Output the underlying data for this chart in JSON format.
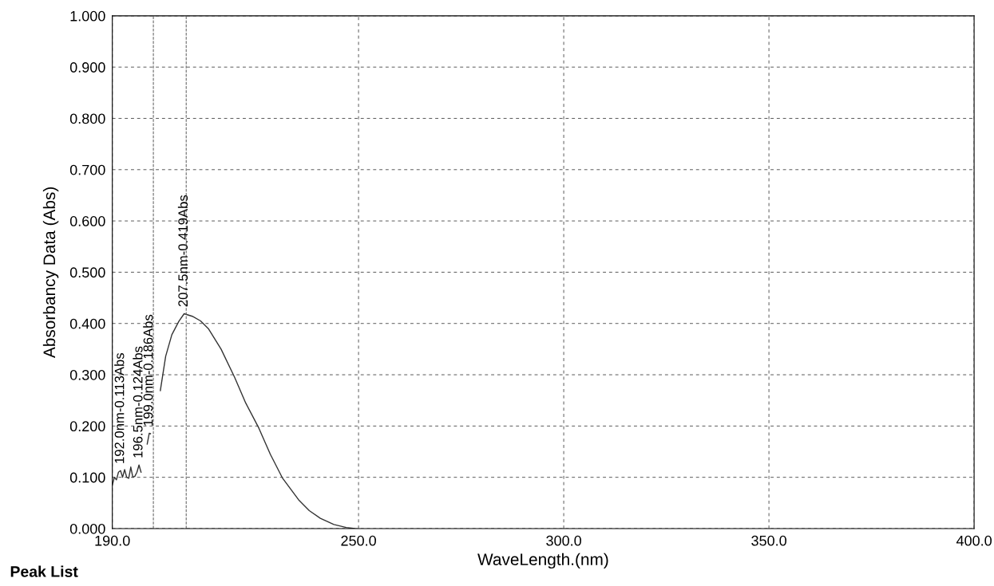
{
  "chart_data": {
    "type": "line",
    "xlabel": "WaveLength.(nm)",
    "ylabel": "Absorbancy Data (Abs)",
    "x": [
      190.0,
      190.5,
      191.0,
      191.5,
      192.0,
      192.5,
      193.0,
      193.5,
      194.0,
      194.5,
      195.0,
      195.5,
      196.0,
      196.5,
      197.0,
      197.5,
      198.5,
      199.0,
      199.3,
      200.0,
      201.7,
      203.0,
      204.5,
      206.2,
      207.5,
      209.5,
      211.5,
      213.4,
      216.5,
      219.8,
      222.5,
      225.7,
      228.5,
      231.5,
      235.4,
      238.0,
      240.7,
      244.0,
      247.0,
      249.0
    ],
    "series": [
      {
        "color": "#333333",
        "values": [
          0.085,
          0.1,
          0.095,
          0.11,
          0.113,
          0.1,
          0.115,
          0.1,
          0.098,
          0.12,
          0.1,
          0.102,
          0.11,
          0.124,
          0.11,
          null,
          0.165,
          0.186,
          0.185,
          null,
          0.269,
          0.336,
          0.378,
          0.404,
          0.419,
          0.414,
          0.405,
          0.39,
          0.35,
          0.295,
          0.245,
          0.196,
          0.145,
          0.098,
          0.056,
          0.035,
          0.02,
          0.008,
          0.002,
          0.0
        ]
      }
    ],
    "xlim": [
      190.0,
      400.0
    ],
    "xticks": [
      {
        "value": 190,
        "label": "190.0"
      },
      {
        "value": 250,
        "label": "250.0"
      },
      {
        "value": 300,
        "label": "300.0"
      },
      {
        "value": 350,
        "label": "350.0"
      },
      {
        "value": 400,
        "label": "400.0"
      }
    ],
    "ylim": [
      0.0,
      1.0
    ],
    "yticks": [
      {
        "value": 0,
        "label": "0.000"
      },
      {
        "value": 0.1,
        "label": "0.100"
      },
      {
        "value": 0.2,
        "label": "0.200"
      },
      {
        "value": 0.3,
        "label": "0.300"
      },
      {
        "value": 0.4,
        "label": "0.400"
      },
      {
        "value": 0.5,
        "label": "0.500"
      },
      {
        "value": 0.6,
        "label": "0.600"
      },
      {
        "value": 0.7,
        "label": "0.700"
      },
      {
        "value": 0.8,
        "label": "0.800"
      },
      {
        "value": 0.9,
        "label": "0.900"
      },
      {
        "value": 1.0,
        "label": "1.000"
      }
    ],
    "ref_lines": [
      {
        "axis": "x",
        "value": 200,
        "label": null,
        "line_style": "dashed"
      },
      {
        "axis": "x",
        "value": 208,
        "label": null,
        "line_style": "dashed"
      }
    ],
    "annotations": [
      {
        "text": "192.0nm-0.113Abs",
        "x": 192.0,
        "y": 0.113
      },
      {
        "text": "196.5nm-0.124Abs",
        "x": 196.5,
        "y": 0.124
      },
      {
        "text": "199.0nm-0.186Abs",
        "x": 199.0,
        "y": 0.186
      },
      {
        "text": "207.5nm-0.419Abs",
        "x": 207.5,
        "y": 0.419
      },
      "Peak List"
    ],
    "grid": true,
    "line_style": "solid",
    "marker": "none"
  }
}
